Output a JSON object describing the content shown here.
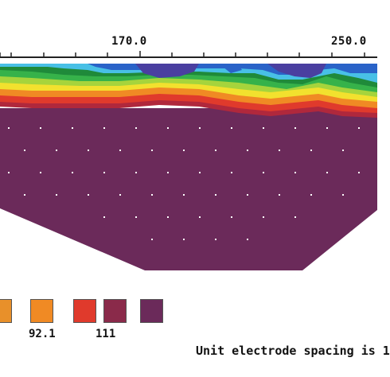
{
  "section": {
    "x_ticks": [
      "170.0",
      "250.0"
    ],
    "colors": {
      "deep_blue": "#4a3fa0",
      "blue": "#2a63c8",
      "light_blue": "#48c0e6",
      "dark_green": "#1f8a3a",
      "green": "#36b24a",
      "yellow_green": "#a6d43c",
      "yellow": "#f2e12e",
      "orange": "#f08a24",
      "red": "#e03a2c",
      "dark_red": "#a02838",
      "purple": "#6b2a5a"
    }
  },
  "legend": {
    "swatches": [
      "#e8902a",
      "#f08a24",
      "#e03a2c",
      "#c0283a",
      "#8a2a4a",
      "#6b2a5a"
    ],
    "labels": [
      "92.1",
      "111"
    ]
  },
  "footer": {
    "note": "Unit electrode spacing is 1"
  }
}
